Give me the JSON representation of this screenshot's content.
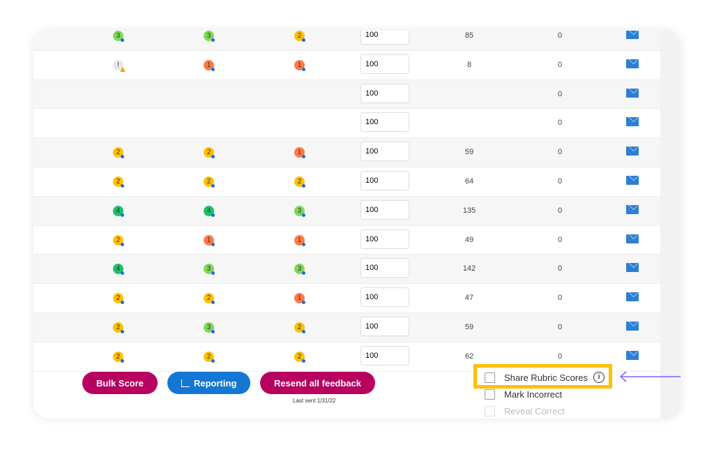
{
  "rows": [
    {
      "s": [
        {
          "v": "3",
          "c": "#7ed957"
        },
        {
          "v": "3",
          "c": "#7ed957"
        },
        {
          "v": "2",
          "c": "#ffc000"
        }
      ],
      "score": "100",
      "num": "85",
      "zero": "0"
    },
    {
      "s": [
        {
          "v": "!",
          "c": "#e6e6e6",
          "warn": true
        },
        {
          "v": "1",
          "c": "#ff7a45"
        },
        {
          "v": "1",
          "c": "#ff7a45"
        }
      ],
      "score": "100",
      "num": "8",
      "zero": "0"
    },
    {
      "s": [],
      "score": "100",
      "num": "",
      "zero": "0"
    },
    {
      "s": [],
      "score": "100",
      "num": "",
      "zero": "0"
    },
    {
      "s": [
        {
          "v": "2",
          "c": "#ffc000"
        },
        {
          "v": "2",
          "c": "#ffc000"
        },
        {
          "v": "1",
          "c": "#ff7a45"
        }
      ],
      "score": "100",
      "num": "59",
      "zero": "0"
    },
    {
      "s": [
        {
          "v": "2",
          "c": "#ffc000"
        },
        {
          "v": "2",
          "c": "#ffc000"
        },
        {
          "v": "2",
          "c": "#ffc000"
        }
      ],
      "score": "100",
      "num": "64",
      "zero": "0"
    },
    {
      "s": [
        {
          "v": "4",
          "c": "#1cc06a"
        },
        {
          "v": "4",
          "c": "#1cc06a"
        },
        {
          "v": "3",
          "c": "#7ed957"
        }
      ],
      "score": "100",
      "num": "135",
      "zero": "0"
    },
    {
      "s": [
        {
          "v": "2",
          "c": "#ffc000"
        },
        {
          "v": "1",
          "c": "#ff7a45"
        },
        {
          "v": "1",
          "c": "#ff7a45"
        }
      ],
      "score": "100",
      "num": "49",
      "zero": "0"
    },
    {
      "s": [
        {
          "v": "4",
          "c": "#1cc06a"
        },
        {
          "v": "3",
          "c": "#7ed957"
        },
        {
          "v": "3",
          "c": "#7ed957"
        }
      ],
      "score": "100",
      "num": "142",
      "zero": "0"
    },
    {
      "s": [
        {
          "v": "2",
          "c": "#ffc000"
        },
        {
          "v": "2",
          "c": "#ffc000"
        },
        {
          "v": "1",
          "c": "#ff7a45"
        }
      ],
      "score": "100",
      "num": "47",
      "zero": "0"
    },
    {
      "s": [
        {
          "v": "2",
          "c": "#ffc000"
        },
        {
          "v": "3",
          "c": "#7ed957"
        },
        {
          "v": "2",
          "c": "#ffc000"
        }
      ],
      "score": "100",
      "num": "59",
      "zero": "0"
    },
    {
      "s": [
        {
          "v": "2",
          "c": "#ffc000"
        },
        {
          "v": "2",
          "c": "#ffc000"
        },
        {
          "v": "2",
          "c": "#ffc000"
        }
      ],
      "score": "100",
      "num": "62",
      "zero": "0"
    }
  ],
  "buttons": {
    "bulk": "Bulk Score",
    "reporting": "Reporting",
    "resend": "Resend all feedback",
    "last_sent": "Last sent 1/31/22"
  },
  "options": {
    "share": "Share Rubric Scores",
    "mark": "Mark Incorrect",
    "reveal": "Reveal Correct"
  },
  "colors": {
    "highlight": "#ffc000",
    "arrow": "#7b61ff",
    "pink": "#b8005f",
    "blue": "#1477d4"
  }
}
